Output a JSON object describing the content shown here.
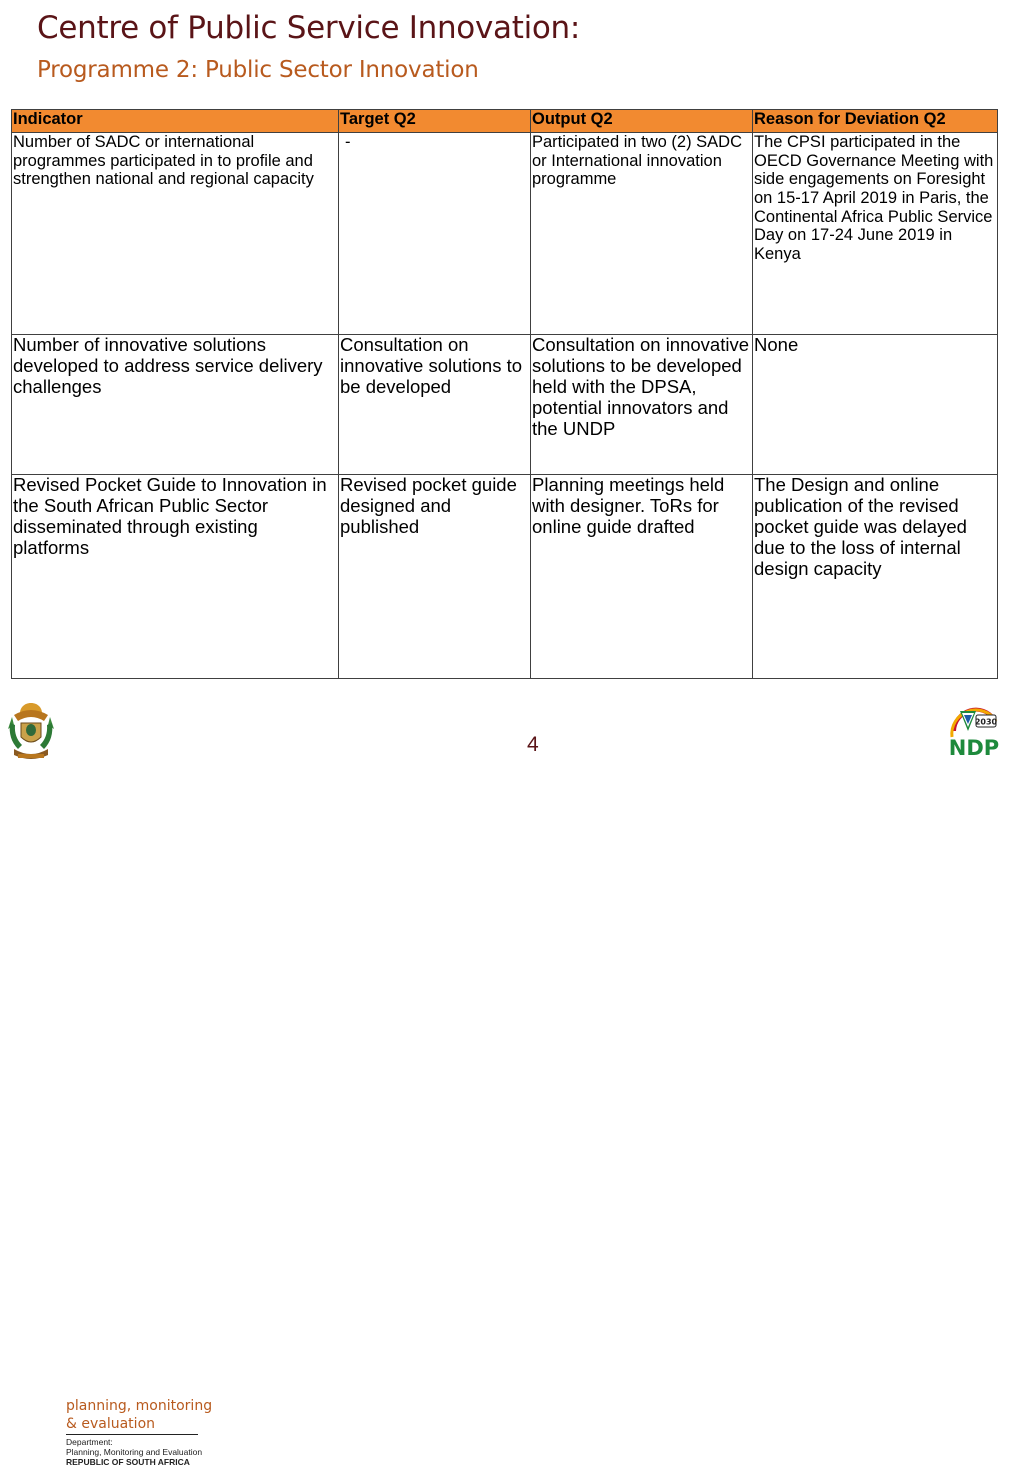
{
  "header": {
    "title": "Centre of Public Service Innovation:",
    "subtitle": "Programme 2: Public Sector Innovation"
  },
  "table": {
    "headers": [
      "Indicator",
      "Target Q2",
      "Output Q2",
      "Reason for Deviation Q2"
    ],
    "rows": [
      {
        "indicator": "Number of SADC or international programmes participated in to profile and strengthen national and regional capacity",
        "target": "-",
        "output": "Participated in two (2) SADC or International innovation programme",
        "reason": "The CPSI participated in the OECD Governance Meeting with side engagements on Foresight on 15-17 April 2019 in Paris, the Continental Africa Public Service Day on 17-24 June 2019 in Kenya"
      },
      {
        "indicator": "Number of innovative solutions developed to address service delivery challenges",
        "target": "Consultation on innovative solutions to be developed",
        "output": "Consultation on innovative solutions to be developed held with the DPSA, potential innovators and the UNDP",
        "reason": "None"
      },
      {
        "indicator": "Revised Pocket Guide to Innovation in the South African Public Sector disseminated through existing platforms",
        "target": "Revised pocket guide designed and published",
        "output": "Planning meetings held with designer. ToRs for online guide drafted",
        "reason": "The Design and online publication of the revised pocket guide was delayed due to the loss of internal design capacity"
      }
    ]
  },
  "footer": {
    "dept_line1": "planning, monitoring",
    "dept_line2": "& evaluation",
    "dept_small1": "Department:",
    "dept_small2": "Planning, Monitoring and Evaluation",
    "dept_republic": "REPUBLIC OF SOUTH AFRICA",
    "page_number": "4",
    "ndp_logo_text": "NDP",
    "ndp_year": "2030"
  },
  "colors": {
    "title": "#5a1417",
    "subtitle": "#b85a1e",
    "header_fill": "#f28a30",
    "ndp_green": "#1e8a3c",
    "ndp_blue": "#1c5aa8"
  },
  "icons": {
    "coat_of_arms": "south-africa-coat-of-arms-icon",
    "ndp": "ndp-2030-logo-icon"
  }
}
